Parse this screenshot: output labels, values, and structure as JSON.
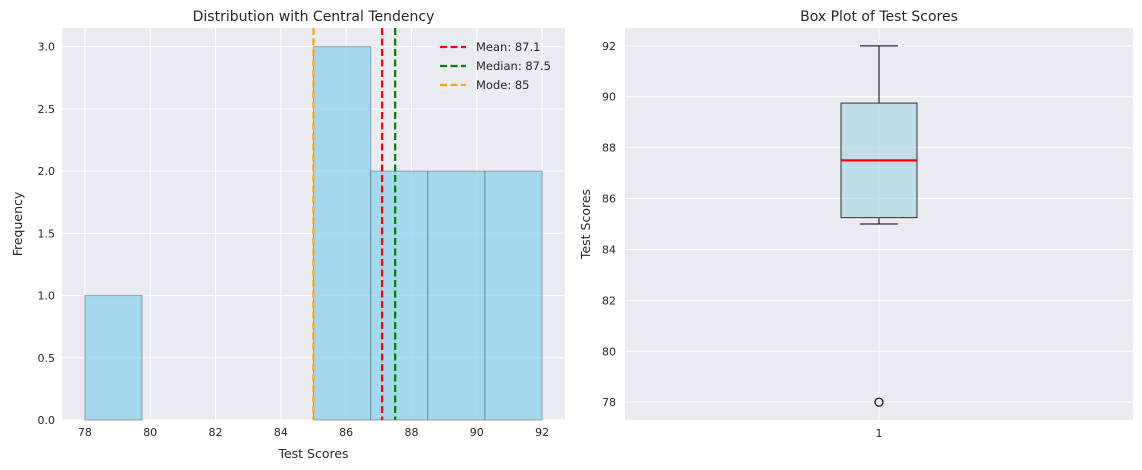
{
  "chart_data": [
    {
      "type": "bar",
      "subtype": "histogram",
      "title": "Distribution with Central Tendency",
      "xlabel": "Test Scores",
      "ylabel": "Frequency",
      "xlim": [
        77.3,
        92.7
      ],
      "ylim": [
        0,
        3.15
      ],
      "xticks": [
        "78",
        "80",
        "82",
        "84",
        "86",
        "88",
        "90",
        "92"
      ],
      "yticks": [
        "0.0",
        "0.5",
        "1.0",
        "1.5",
        "2.0",
        "2.5",
        "3.0"
      ],
      "bins": [
        {
          "start": 78.0,
          "end": 79.75,
          "count": 1
        },
        {
          "start": 79.75,
          "end": 81.5,
          "count": 0
        },
        {
          "start": 81.5,
          "end": 83.25,
          "count": 0
        },
        {
          "start": 83.25,
          "end": 85.0,
          "count": 0
        },
        {
          "start": 85.0,
          "end": 86.75,
          "count": 3
        },
        {
          "start": 86.75,
          "end": 88.5,
          "count": 2
        },
        {
          "start": 88.5,
          "end": 90.25,
          "count": 2
        },
        {
          "start": 90.25,
          "end": 92.0,
          "count": 2
        }
      ],
      "bar_color": "#87ceeb",
      "reference_lines": [
        {
          "label": "Mean: 87.1",
          "x": 87.1,
          "color": "#ff0000"
        },
        {
          "label": "Median: 87.5",
          "x": 87.5,
          "color": "#008000"
        },
        {
          "label": "Mode: 85",
          "x": 85,
          "color": "#ffa500"
        }
      ],
      "legend": "top-right",
      "grid": true
    },
    {
      "type": "box",
      "title": "Box Plot of Test Scores",
      "xlabel": "",
      "ylabel": "Test Scores",
      "ylim": [
        77.3,
        92.7
      ],
      "xticks": [
        "1"
      ],
      "yticks": [
        "78",
        "80",
        "82",
        "84",
        "86",
        "88",
        "90",
        "92"
      ],
      "box": {
        "category": "1",
        "whisker_low": 85,
        "q1": 85.25,
        "median": 87.5,
        "q3": 89.75,
        "whisker_high": 92,
        "outliers": [
          78
        ]
      },
      "box_color": "#add8e6",
      "median_color": "#ff0000",
      "grid": true
    }
  ]
}
